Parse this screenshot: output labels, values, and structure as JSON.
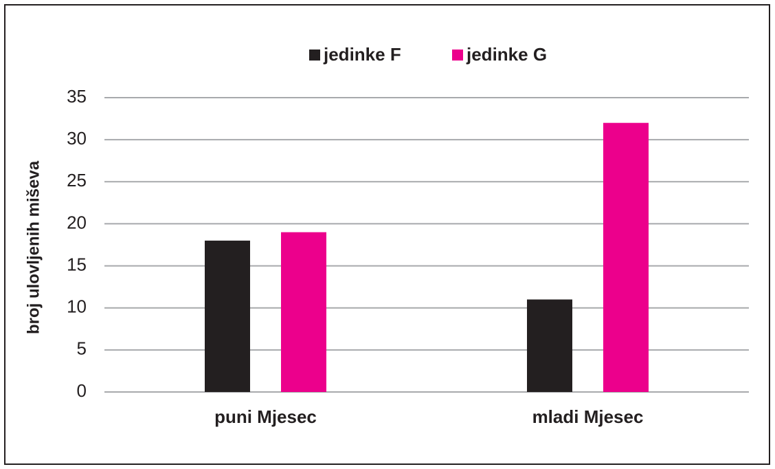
{
  "chart_data": {
    "type": "bar",
    "categories": [
      "puni Mjesec",
      "mladi Mjesec"
    ],
    "series": [
      {
        "name": "jedinke F",
        "color": "#231f20",
        "values": [
          18,
          11
        ]
      },
      {
        "name": "jedinke G",
        "color": "#ec008c",
        "values": [
          19,
          32
        ]
      }
    ],
    "y_label": "broj ulovljenih miševa",
    "ylim": [
      0,
      35
    ],
    "yticks": [
      0,
      5,
      10,
      15,
      20,
      25,
      30,
      35
    ],
    "grid": true,
    "legend": "top"
  }
}
